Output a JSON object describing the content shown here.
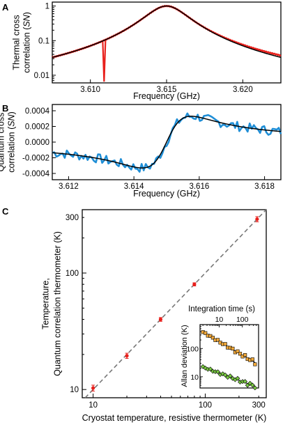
{
  "chart_data": [
    {
      "panel": "A",
      "type": "line",
      "xlabel": "Frequency (GHz)",
      "ylabel": [
        "Thermal cross",
        "correlation (SN)"
      ],
      "xscale": "linear",
      "yscale": "log",
      "xlim": [
        3.6075,
        3.6225
      ],
      "ylim": [
        0.006,
        1.3
      ],
      "xticks": [
        3.61,
        3.615,
        3.62
      ],
      "xtick_labels": [
        "3.610",
        "3.615",
        "3.620"
      ],
      "yticks": [
        0.01,
        0.1,
        1
      ],
      "ytick_labels": [
        "0.01",
        "0.1",
        "1"
      ],
      "grid": false,
      "series": [
        {
          "role": "data",
          "color": "#e8201c",
          "center": 3.615,
          "half_width": 0.00138,
          "peak": 1.0,
          "dip": {
            "x": 3.6109,
            "y": 0.0065
          }
        },
        {
          "role": "fit",
          "color": "#000000",
          "center": 3.615,
          "half_width": 0.00138,
          "peak": 1.0
        }
      ]
    },
    {
      "panel": "B",
      "type": "line",
      "xlabel": "Frequency (GHz)",
      "ylabel": [
        "Quantum cross",
        "correlation (SN)"
      ],
      "xscale": "linear",
      "yscale": "linear",
      "xlim": [
        3.6115,
        3.6185
      ],
      "ylim": [
        -0.00048,
        0.00048
      ],
      "xticks": [
        3.612,
        3.614,
        3.616,
        3.618
      ],
      "xtick_labels": [
        "3.612",
        "3.614",
        "3.616",
        "3.618"
      ],
      "yticks": [
        0.0004,
        0.0002,
        0.0,
        -0.0002,
        -0.0004
      ],
      "ytick_labels": [
        "0.0004",
        "0.0002",
        "0.0000",
        "-0.0002",
        "-0.0004"
      ],
      "grid": false,
      "series": [
        {
          "role": "data",
          "color": "#1f8ed6",
          "noise_amplitude": 6e-05
        },
        {
          "role": "fit",
          "color": "#000000",
          "center": 3.615,
          "half_width": 0.00075,
          "amplitude": 0.00033
        }
      ]
    },
    {
      "panel": "C",
      "type": "scatter",
      "xlabel": "Cryostat temperature, resistive thermometer (K)",
      "ylabel": [
        "Temperature,",
        "Quantum correlation thermometer (K)"
      ],
      "xscale": "log",
      "yscale": "log",
      "xlim": [
        8,
        350
      ],
      "ylim": [
        8.5,
        350
      ],
      "xticks": [
        10,
        100,
        300
      ],
      "xtick_labels": [
        "10",
        "100",
        "300"
      ],
      "yticks": [
        10,
        100,
        300
      ],
      "ytick_labels": [
        "10",
        "100",
        "300"
      ],
      "grid": false,
      "reference_line": {
        "style": "dashed",
        "color": "#777777",
        "slope": 1
      },
      "points": [
        {
          "x": 10,
          "y": 10.3,
          "err": 0.6
        },
        {
          "x": 20,
          "y": 19.5,
          "err": 1.0
        },
        {
          "x": 40,
          "y": 40,
          "err": 1.5
        },
        {
          "x": 80,
          "y": 80,
          "err": 2.5
        },
        {
          "x": 290,
          "y": 290,
          "err": 15
        }
      ],
      "point_color": "#e8201c",
      "inset": {
        "type": "scatter",
        "title": "Integration time (s)",
        "ylabel": "Allan deviation (K)",
        "xscale": "log",
        "yscale": "log",
        "xlim": [
          1.5,
          500
        ],
        "ylim": [
          4,
          700
        ],
        "xticks": [
          10,
          100
        ],
        "xtick_labels": [
          "10",
          "100"
        ],
        "yticks": [
          10,
          100
        ],
        "ytick_labels": [
          "10",
          "100"
        ],
        "series": [
          {
            "color": "#f2a93a",
            "marker": "square",
            "x_range": [
              2,
              350
            ],
            "y_start": 380,
            "y_end": 32
          },
          {
            "color": "#7ac943",
            "marker": "diamond",
            "x_range": [
              2,
              350
            ],
            "y_start": 22,
            "y_end": 4.6
          }
        ]
      }
    }
  ],
  "panel_labels": [
    "A",
    "B",
    "C"
  ]
}
